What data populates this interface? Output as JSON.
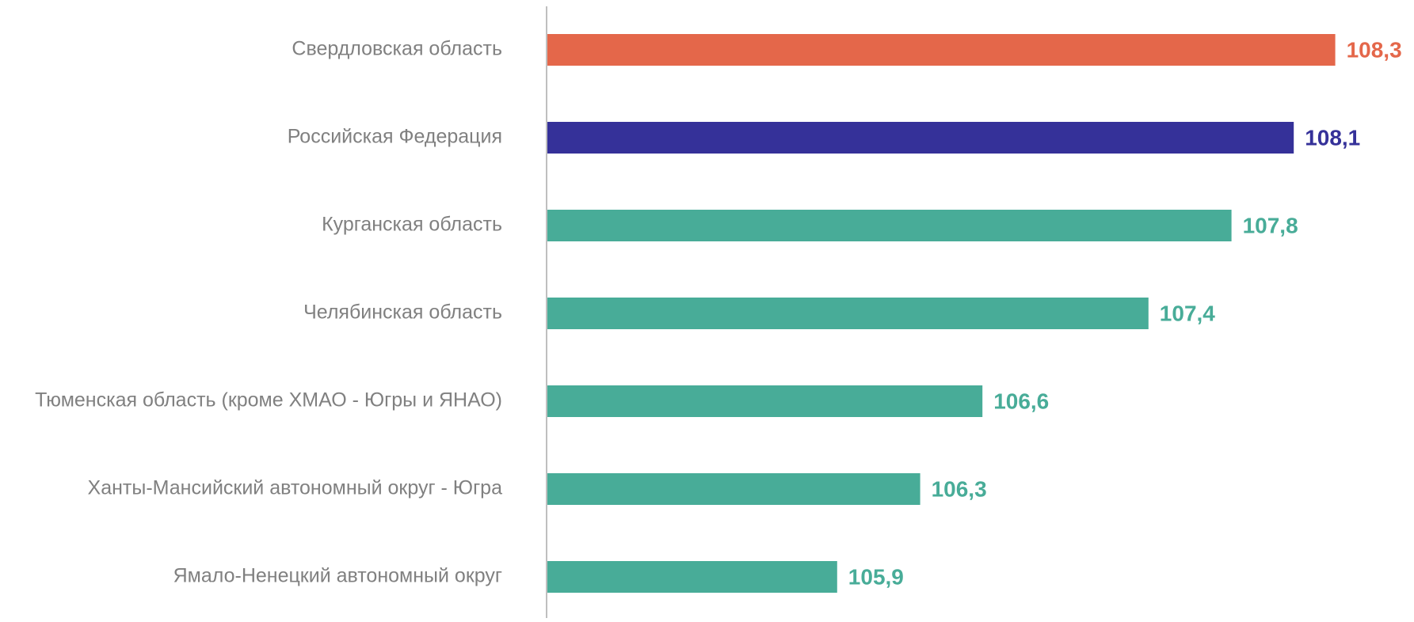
{
  "chart_data": {
    "type": "bar",
    "orientation": "horizontal",
    "categories": [
      "Свердловская область",
      "Российская Федерация",
      "Курганская область",
      "Челябинская область",
      "Тюменская область (кроме ХМАО - Югры и ЯНАО)",
      "Ханты-Мансийский автономный округ - Югра",
      "Ямало-Ненецкий автономный округ"
    ],
    "values": [
      108.3,
      108.1,
      107.8,
      107.4,
      106.6,
      106.3,
      105.9
    ],
    "value_labels": [
      "108,3",
      "108,1",
      "107,8",
      "107,4",
      "106,6",
      "106,3",
      "105,9"
    ],
    "colors": [
      "#e4674a",
      "#353199",
      "#48ac98",
      "#48ac98",
      "#48ac98",
      "#48ac98",
      "#48ac98"
    ],
    "xlim": [
      104.5,
      108.5
    ],
    "grid": false
  }
}
